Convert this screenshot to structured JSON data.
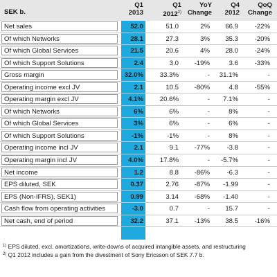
{
  "header": {
    "unit": "SEK b.",
    "columns": [
      {
        "line1": "Q1",
        "line2": "2013",
        "sup": ""
      },
      {
        "line1": "Q1",
        "line2": "2012",
        "sup": "2)"
      },
      {
        "line1": "YoY",
        "line2": "Change",
        "sup": ""
      },
      {
        "line1": "Q4",
        "line2": "2012",
        "sup": ""
      },
      {
        "line1": "QoQ",
        "line2": "Change",
        "sup": ""
      }
    ]
  },
  "rows": [
    {
      "label": "Net sales",
      "values": [
        "52.0",
        "51.0",
        "2%",
        "66.9",
        "-22%"
      ]
    },
    {
      "label": "Of which Networks",
      "values": [
        "28.1",
        "27.3",
        "3%",
        "35.3",
        "-20%"
      ]
    },
    {
      "label": "Of which Global Services",
      "values": [
        "21.5",
        "20.6",
        "4%",
        "28.0",
        "-24%"
      ]
    },
    {
      "label": "Of which Support Solutions",
      "values": [
        "2.4",
        "3.0",
        "-19%",
        "3.6",
        "-33%"
      ]
    },
    {
      "label": "Gross margin",
      "values": [
        "32.0%",
        "33.3%",
        "-",
        "31.1%",
        "-"
      ]
    },
    {
      "label": "Operating income excl JV",
      "values": [
        "2.1",
        "10.5",
        "-80%",
        "4.8",
        "-55%"
      ]
    },
    {
      "label": "Operating margin excl JV",
      "values": [
        "4.1%",
        "20.6%",
        "-",
        "7.1%",
        "-"
      ]
    },
    {
      "label": "Of which Networks",
      "values": [
        "6%",
        "6%",
        "-",
        "8%",
        "-"
      ]
    },
    {
      "label": "Of which Global Services",
      "values": [
        "3%",
        "6%",
        "-",
        "6%",
        "-"
      ]
    },
    {
      "label": "Of which Support Solutions",
      "values": [
        "-1%",
        "-1%",
        "-",
        "8%",
        "-"
      ]
    },
    {
      "label": "Operating income incl JV",
      "values": [
        "2.1",
        "9.1",
        "-77%",
        "-3.8",
        "-"
      ]
    },
    {
      "label": "Operating margin incl JV",
      "values": [
        "4.0%",
        "17.8%",
        "-",
        "-5.7%",
        "-"
      ]
    },
    {
      "label": "Net income",
      "values": [
        "1.2",
        "8.8",
        "-86%",
        "-6.3",
        "-"
      ]
    },
    {
      "label": "EPS diluted, SEK",
      "values": [
        "0.37",
        "2.76",
        "-87%",
        "-1.99",
        "-"
      ]
    },
    {
      "label": "EPS (Non-IFRS), SEK1)",
      "values": [
        "0.99",
        "3.14",
        "-68%",
        "-1.40",
        "-"
      ]
    },
    {
      "label": "Cash flow from operating activities",
      "values": [
        "-3.0",
        "0.7",
        "-",
        "15.7",
        "-"
      ]
    },
    {
      "label": "Net cash, end of period",
      "values": [
        "32.2",
        "37.1",
        "-13%",
        "38.5",
        "-16%"
      ]
    }
  ],
  "footnotes": [
    {
      "mark": "1)",
      "text": "EPS diluted, excl. amortizations, write-downs of acquired intangible assets, and restructuring"
    },
    {
      "mark": "2)",
      "text": "Q1 2012 includes a gain from the divestment of Sony Ericsson of SEK 7.7 b."
    }
  ],
  "colors": {
    "highlight": "#1eaadf",
    "header_background": "#e6e6e6"
  }
}
